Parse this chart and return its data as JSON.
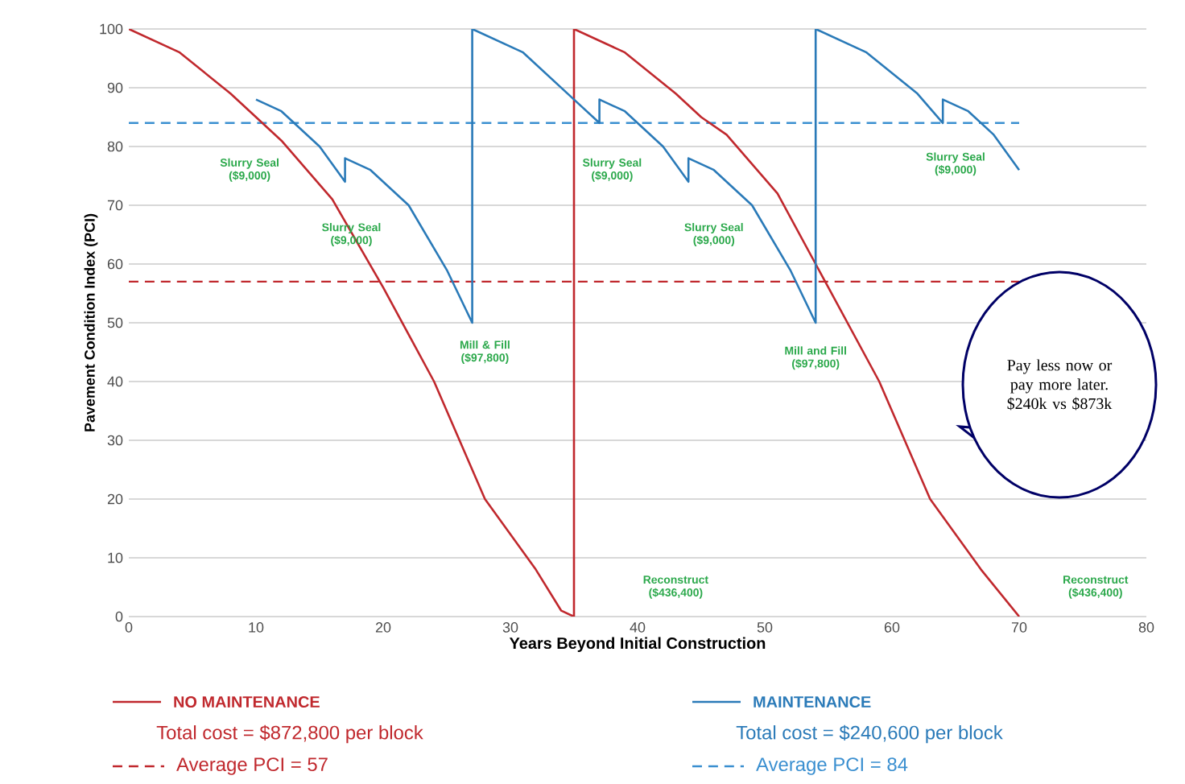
{
  "chart_data": {
    "type": "line",
    "xlabel": "Years Beyond Initial Construction",
    "ylabel": "Pavement Condition Index (PCI)",
    "xlim": [
      0,
      80
    ],
    "ylim": [
      0,
      100
    ],
    "xticks": [
      0,
      10,
      20,
      30,
      40,
      50,
      60,
      70,
      80
    ],
    "yticks": [
      0,
      10,
      20,
      30,
      40,
      50,
      60,
      70,
      80,
      90,
      100
    ],
    "grid": "y",
    "legend": "bottom",
    "marker": "none",
    "line_style": "solid",
    "series": [
      {
        "name": "NO MAINTENANCE",
        "color": "#c0282d",
        "x": [
          0,
          4,
          8,
          10,
          12,
          16,
          20,
          24,
          28,
          32,
          34,
          35,
          35,
          39,
          43,
          45,
          47,
          51,
          55,
          59,
          63,
          67,
          70
        ],
        "values": [
          100,
          96,
          89,
          85,
          81,
          71,
          56,
          40,
          20,
          8,
          1,
          0,
          100,
          96,
          89,
          85,
          82,
          72,
          56,
          40,
          20,
          8,
          0
        ]
      },
      {
        "name": "MAINTENANCE",
        "color": "#2a7ab8",
        "x": [
          10,
          12,
          15,
          17,
          17,
          19,
          22,
          25,
          27,
          27,
          31,
          35,
          37,
          37,
          39,
          42,
          44,
          44,
          46,
          49,
          52,
          54,
          54,
          58,
          62,
          64,
          64,
          66,
          68,
          70
        ],
        "values": [
          88,
          86,
          80,
          74,
          78,
          76,
          70,
          59,
          50,
          100,
          96,
          88,
          84,
          88,
          86,
          80,
          74,
          78,
          76,
          70,
          59,
          50,
          100,
          96,
          89,
          84,
          88,
          86,
          82,
          76
        ]
      }
    ],
    "ref_lines": [
      {
        "axis": "y",
        "value": 57,
        "label": "Average PCI = 57",
        "color": "#c0282d",
        "line_style": "dashed"
      },
      {
        "axis": "y",
        "value": 84,
        "label": "Average PCI = 84",
        "color": "#3a8fd0",
        "line_style": "dashed"
      }
    ],
    "annotations": [
      "Slurry Seal ($9,000)",
      "Slurry Seal ($9,000)",
      "Mill & Fill ($97,800)",
      "Slurry Seal ($9,000)",
      "Slurry Seal ($9,000)",
      "Mill and Fill ($97,800)",
      "Slurry Seal ($9,000)",
      "Reconstruct ($436,400)",
      "Reconstruct ($436,400)",
      "Total cost = $872,800 per block",
      "Total cost = $240,600 per block",
      "Pay less now or pay more later. $240k vs $873k"
    ]
  }
}
